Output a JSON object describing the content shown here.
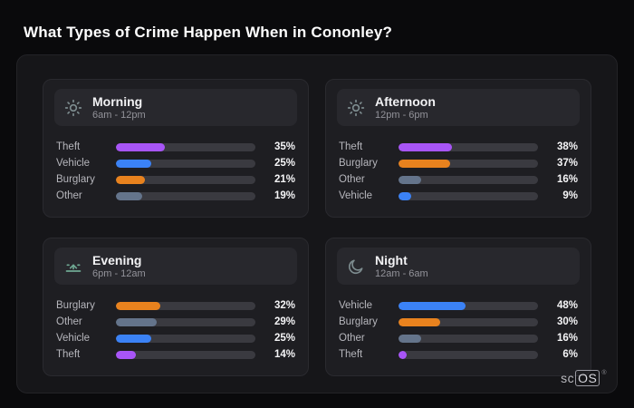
{
  "title": "What Types of Crime Happen When in Cononley?",
  "brand": {
    "prefix": "sc",
    "boxed": "OS",
    "reg": "®"
  },
  "colors": {
    "Theft": "#a855f7",
    "Vehicle": "#3b82f6",
    "Burglary": "#e8821e",
    "Other": "#64748b"
  },
  "cards": [
    {
      "title": "Morning",
      "subtitle": "6am - 12pm",
      "icon": "sun-icon",
      "rows": [
        {
          "label": "Theft",
          "value": 35
        },
        {
          "label": "Vehicle",
          "value": 25
        },
        {
          "label": "Burglary",
          "value": 21
        },
        {
          "label": "Other",
          "value": 19
        }
      ]
    },
    {
      "title": "Afternoon",
      "subtitle": "12pm - 6pm",
      "icon": "sun-icon",
      "rows": [
        {
          "label": "Theft",
          "value": 38
        },
        {
          "label": "Burglary",
          "value": 37
        },
        {
          "label": "Other",
          "value": 16
        },
        {
          "label": "Vehicle",
          "value": 9
        }
      ]
    },
    {
      "title": "Evening",
      "subtitle": "6pm - 12am",
      "icon": "sunset-icon",
      "rows": [
        {
          "label": "Burglary",
          "value": 32
        },
        {
          "label": "Other",
          "value": 29
        },
        {
          "label": "Vehicle",
          "value": 25
        },
        {
          "label": "Theft",
          "value": 14
        }
      ]
    },
    {
      "title": "Night",
      "subtitle": "12am - 6am",
      "icon": "moon-icon",
      "rows": [
        {
          "label": "Vehicle",
          "value": 48
        },
        {
          "label": "Burglary",
          "value": 30
        },
        {
          "label": "Other",
          "value": 16
        },
        {
          "label": "Theft",
          "value": 6
        }
      ]
    }
  ],
  "chart_data": [
    {
      "type": "bar",
      "title": "Morning",
      "subtitle": "6am - 12pm",
      "categories": [
        "Theft",
        "Vehicle",
        "Burglary",
        "Other"
      ],
      "values": [
        35,
        25,
        21,
        19
      ],
      "unit": "%",
      "xlim": [
        0,
        100
      ]
    },
    {
      "type": "bar",
      "title": "Afternoon",
      "subtitle": "12pm - 6pm",
      "categories": [
        "Theft",
        "Burglary",
        "Other",
        "Vehicle"
      ],
      "values": [
        38,
        37,
        16,
        9
      ],
      "unit": "%",
      "xlim": [
        0,
        100
      ]
    },
    {
      "type": "bar",
      "title": "Evening",
      "subtitle": "6pm - 12am",
      "categories": [
        "Burglary",
        "Other",
        "Vehicle",
        "Theft"
      ],
      "values": [
        32,
        29,
        25,
        14
      ],
      "unit": "%",
      "xlim": [
        0,
        100
      ]
    },
    {
      "type": "bar",
      "title": "Night",
      "subtitle": "12am - 6am",
      "categories": [
        "Vehicle",
        "Burglary",
        "Other",
        "Theft"
      ],
      "values": [
        48,
        30,
        16,
        6
      ],
      "unit": "%",
      "xlim": [
        0,
        100
      ]
    }
  ]
}
